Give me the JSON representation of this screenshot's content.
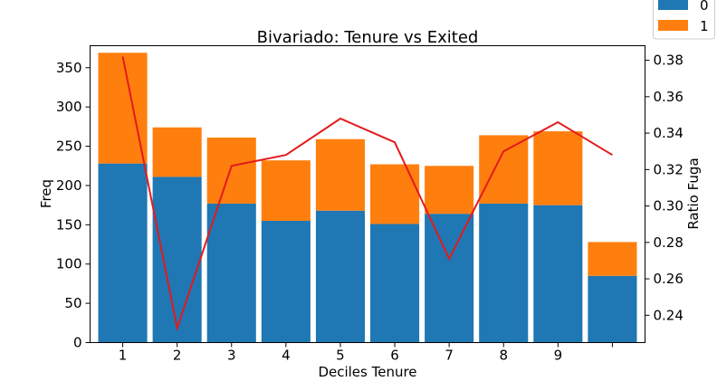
{
  "chart_data": {
    "type": "bar",
    "title": "Bivariado: Tenure vs Exited",
    "xlabel": "Deciles Tenure",
    "ylabel": "Freq",
    "y2label": "Ratio Fuga",
    "categories": [
      "1",
      "2",
      "3",
      "4",
      "5",
      "6",
      "7",
      "8",
      "9",
      ""
    ],
    "stacked": true,
    "series": [
      {
        "name": "0",
        "color": "#1f77b4",
        "values": [
          228,
          211,
          177,
          155,
          168,
          151,
          164,
          177,
          175,
          85
        ]
      },
      {
        "name": "1",
        "color": "#ff7f0e",
        "values": [
          141,
          63,
          84,
          77,
          91,
          76,
          61,
          87,
          94,
          43
        ]
      }
    ],
    "line": {
      "axis": "right",
      "color": "#e31a1c",
      "values": [
        0.382,
        0.233,
        0.322,
        0.328,
        0.348,
        0.335,
        0.271,
        0.33,
        0.346,
        0.328
      ]
    },
    "ylim": [
      0,
      378
    ],
    "y_ticks": [
      0,
      50,
      100,
      150,
      200,
      250,
      300,
      350
    ],
    "y2lim": [
      0.225,
      0.388
    ],
    "y2_ticks": [
      0.24,
      0.26,
      0.28,
      0.3,
      0.32,
      0.34,
      0.36,
      0.38
    ],
    "legend": {
      "placement": "top-right",
      "entries": [
        "0",
        "1"
      ]
    },
    "grid": false
  }
}
